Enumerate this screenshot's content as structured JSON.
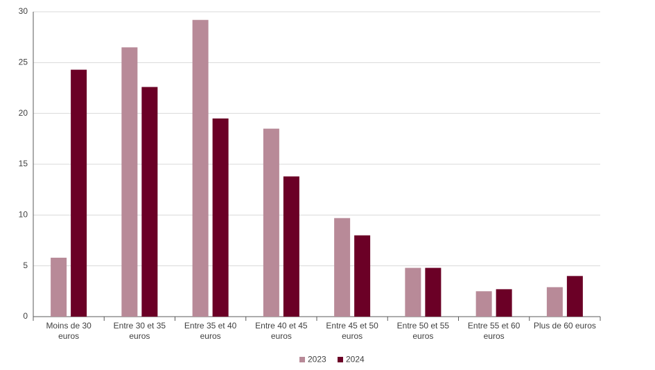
{
  "chart_data": {
    "type": "bar",
    "categories": [
      "Moins de 30 euros",
      "Entre 30 et 35 euros",
      "Entre 35 et 40 euros",
      "Entre 40 et 45 euros",
      "Entre 45 et 50 euros",
      "Entre 50 et 55 euros",
      "Entre 55 et 60 euros",
      "Plus de 60 euros"
    ],
    "series": [
      {
        "name": "2023",
        "color": "#b88a98",
        "values": [
          5.8,
          26.5,
          29.2,
          18.5,
          9.7,
          4.8,
          2.5,
          2.9
        ]
      },
      {
        "name": "2024",
        "color": "#6b0026",
        "values": [
          24.3,
          22.6,
          19.5,
          13.8,
          8.0,
          4.8,
          2.7,
          4.0
        ]
      }
    ],
    "ylim": [
      0,
      30
    ],
    "yticks": [
      0,
      5,
      10,
      15,
      20,
      25,
      30
    ],
    "grid": true,
    "legend": "bottom"
  }
}
